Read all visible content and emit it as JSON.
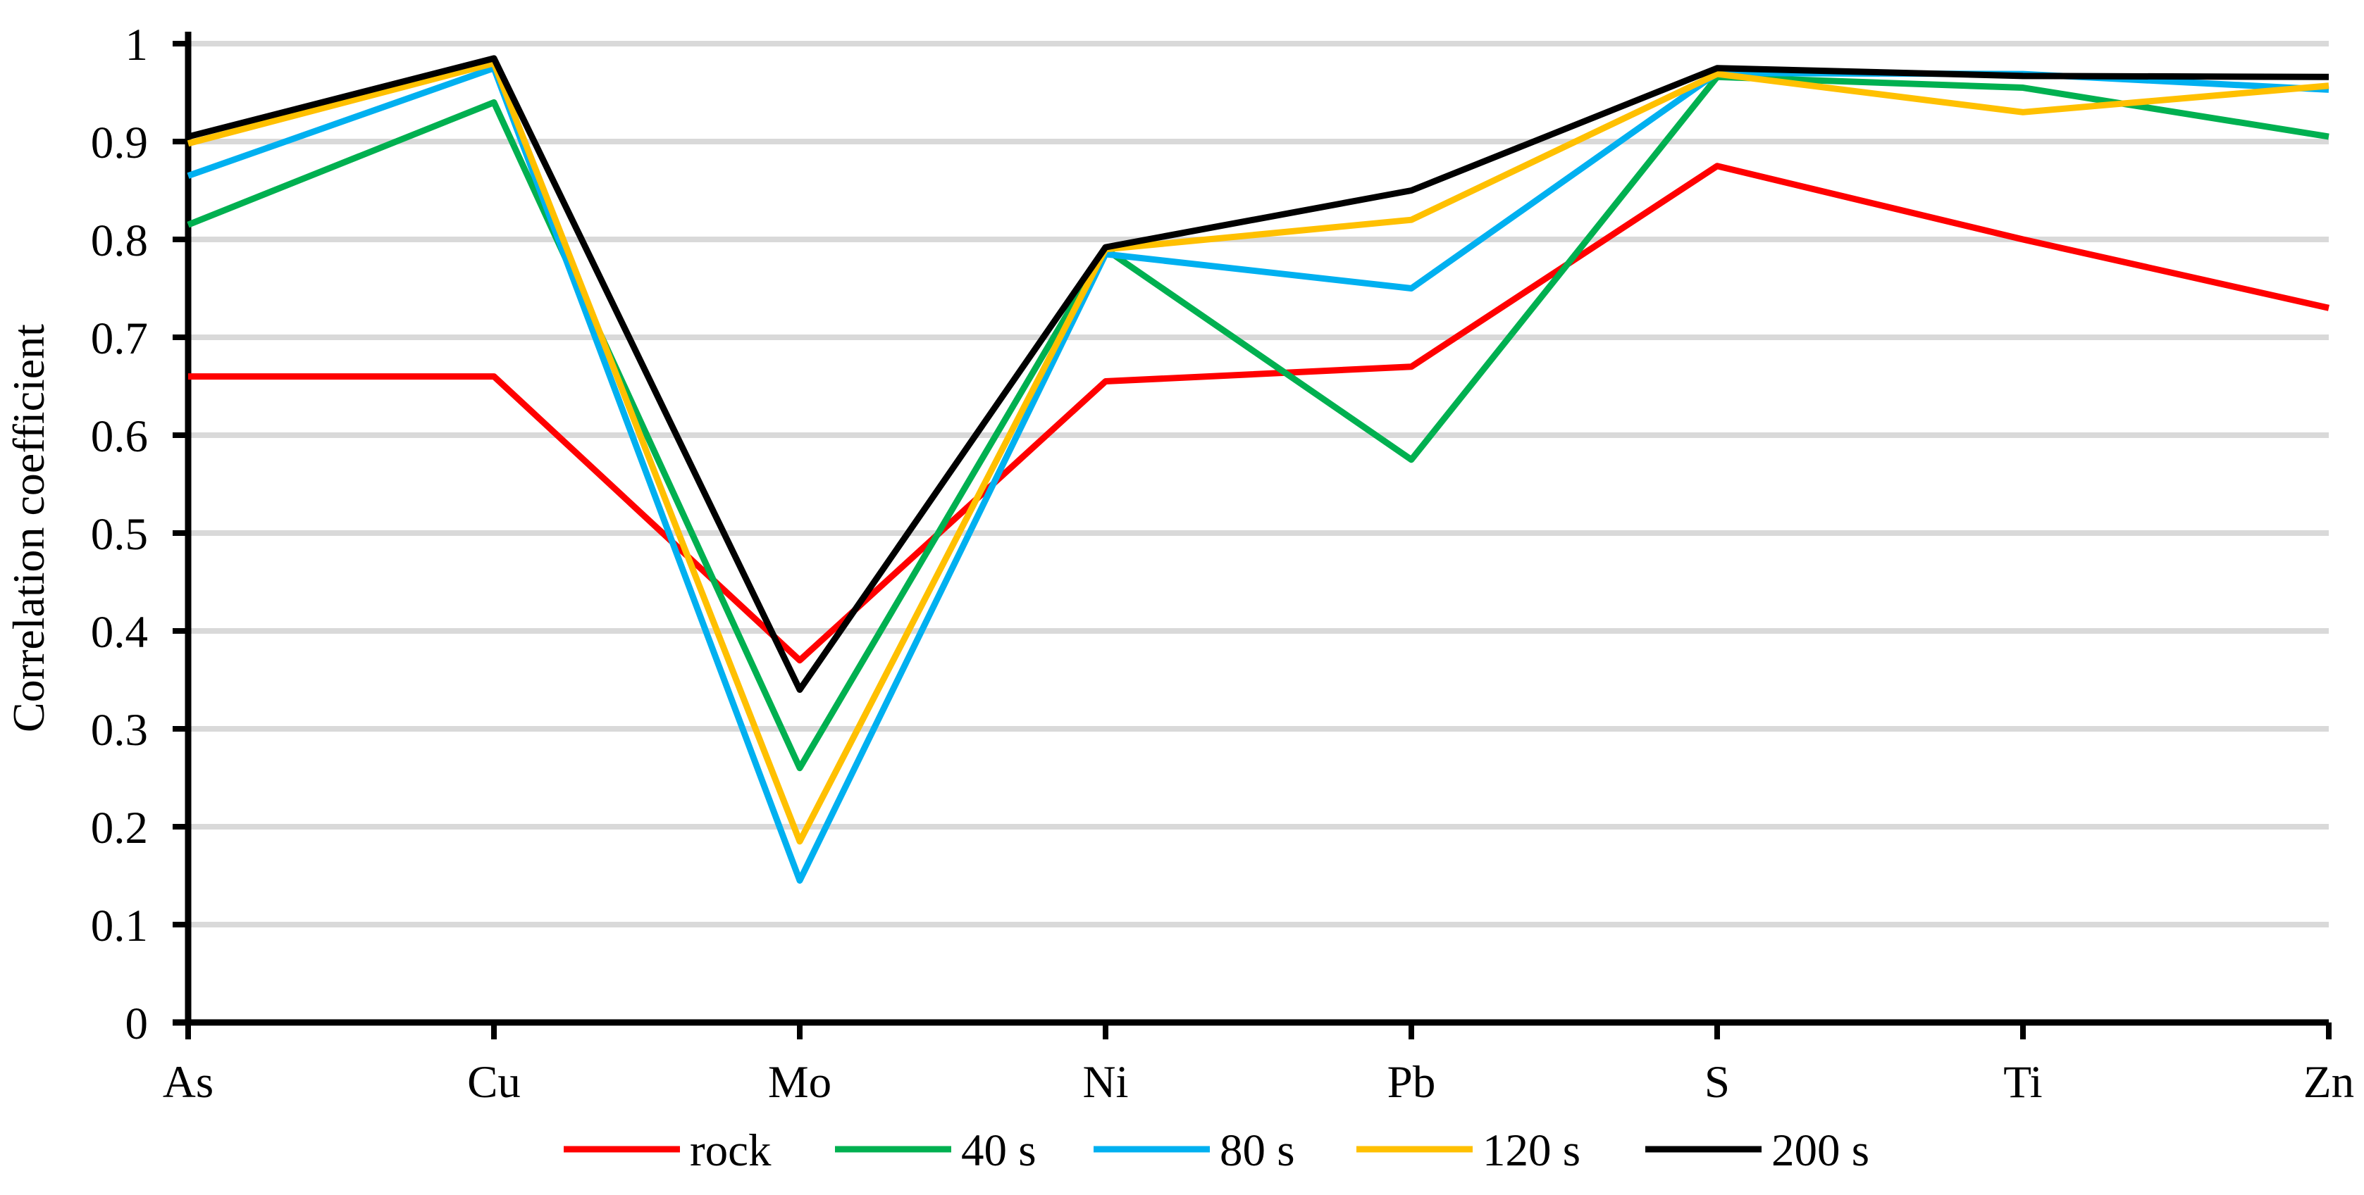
{
  "chart_data": {
    "type": "line",
    "title": "",
    "xlabel": "",
    "ylabel": "Correlation coefficient",
    "categories": [
      "As",
      "Cu",
      "Mo",
      "Ni",
      "Pb",
      "S",
      "Ti",
      "Zn"
    ],
    "ylim": [
      0,
      1
    ],
    "ytick_step": 0.1,
    "ytick_labels": [
      "0",
      "0.1",
      "0.2",
      "0.3",
      "0.4",
      "0.5",
      "0.6",
      "0.7",
      "0.8",
      "0.9",
      "1"
    ],
    "grid": true,
    "grid_color": "#D9D9D9",
    "axis_color": "#000000",
    "text_color": "#000000",
    "legend_position": "bottom",
    "series": [
      {
        "name": "rock",
        "color": "#FF0000",
        "values": [
          0.66,
          0.66,
          0.37,
          0.655,
          0.67,
          0.875,
          0.8,
          0.73
        ]
      },
      {
        "name": "40 s",
        "color": "#00B050",
        "values": [
          0.815,
          0.94,
          0.26,
          0.79,
          0.575,
          0.966,
          0.955,
          0.905
        ]
      },
      {
        "name": "80 s",
        "color": "#00B0F0",
        "values": [
          0.865,
          0.975,
          0.145,
          0.785,
          0.75,
          0.97,
          0.969,
          0.953
        ]
      },
      {
        "name": "120 s",
        "color": "#FFC000",
        "values": [
          0.898,
          0.98,
          0.185,
          0.79,
          0.82,
          0.969,
          0.93,
          0.957
        ]
      },
      {
        "name": "200 s",
        "color": "#000000",
        "values": [
          0.905,
          0.985,
          0.34,
          0.792,
          0.85,
          0.975,
          0.967,
          0.966
        ]
      }
    ]
  }
}
